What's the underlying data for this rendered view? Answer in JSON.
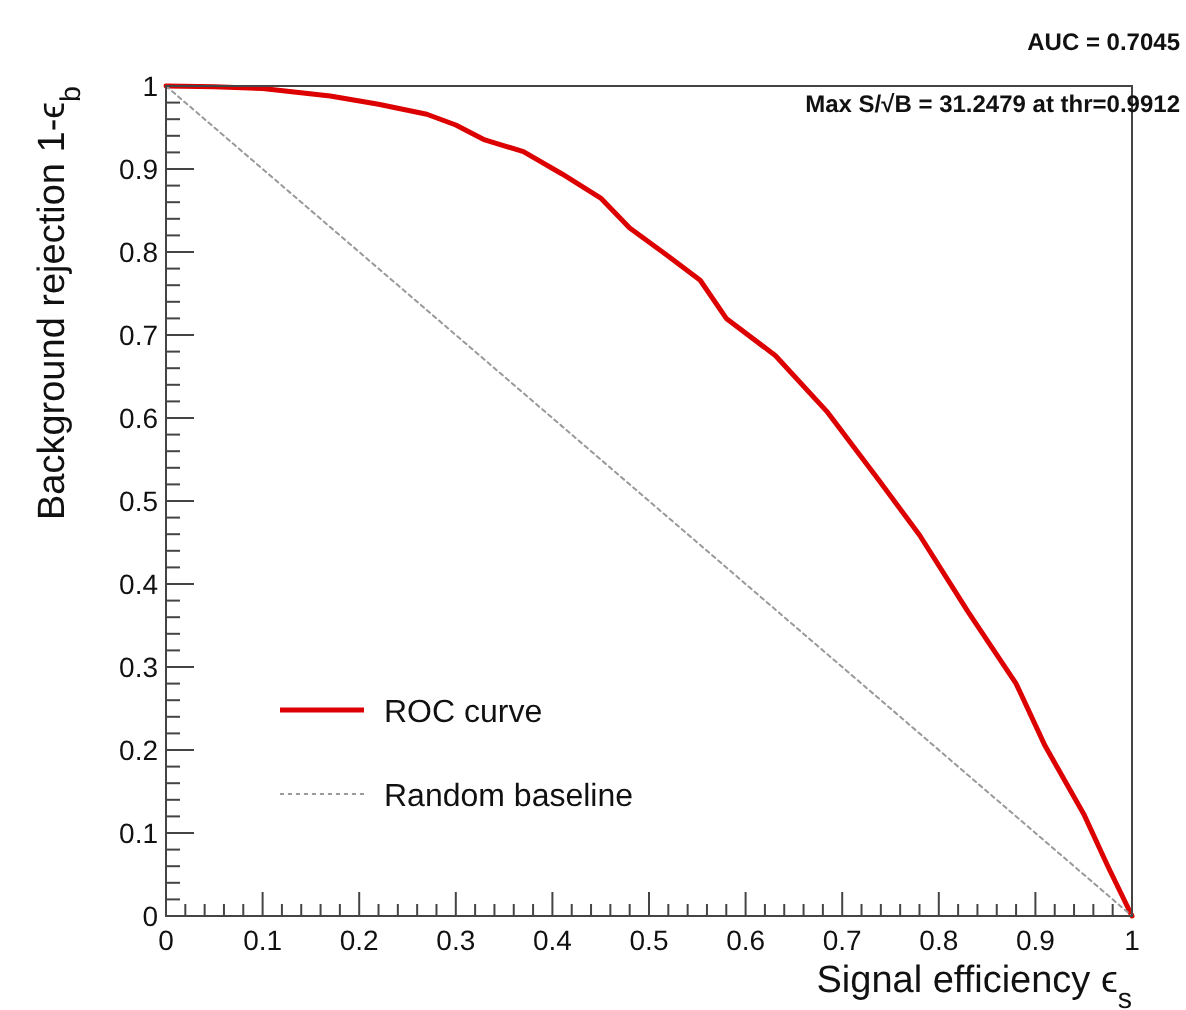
{
  "chart_data": {
    "type": "line",
    "xlabel": "Signal efficiency ϵ$_{s}$",
    "ylabel": "Background rejection 1-ϵ$_{b}$",
    "annotations": [
      "AUC = 0.7045",
      "Max S/√B = 31.2479 at thr=0.9912"
    ],
    "xlim": [
      0,
      1
    ],
    "ylim": [
      0,
      1
    ],
    "xticks": [
      0,
      {
        "value": 0.02,
        "label": null
      },
      {
        "value": 0.04,
        "label": null
      },
      {
        "value": 0.06,
        "label": null
      },
      {
        "value": 0.08,
        "label": null
      },
      0.1,
      {
        "value": 0.12,
        "label": null
      },
      {
        "value": 0.14,
        "label": null
      },
      {
        "value": 0.16,
        "label": null
      },
      {
        "value": 0.18,
        "label": null
      },
      0.2,
      {
        "value": 0.22,
        "label": null
      },
      {
        "value": 0.24,
        "label": null
      },
      {
        "value": 0.26,
        "label": null
      },
      {
        "value": 0.28,
        "label": null
      },
      0.3,
      {
        "value": 0.32,
        "label": null
      },
      {
        "value": 0.34,
        "label": null
      },
      {
        "value": 0.36,
        "label": null
      },
      {
        "value": 0.38,
        "label": null
      },
      0.4,
      {
        "value": 0.42,
        "label": null
      },
      {
        "value": 0.44,
        "label": null
      },
      {
        "value": 0.46,
        "label": null
      },
      {
        "value": 0.48,
        "label": null
      },
      0.5,
      {
        "value": 0.52,
        "label": null
      },
      {
        "value": 0.54,
        "label": null
      },
      {
        "value": 0.56,
        "label": null
      },
      {
        "value": 0.58,
        "label": null
      },
      0.6,
      {
        "value": 0.62,
        "label": null
      },
      {
        "value": 0.64,
        "label": null
      },
      {
        "value": 0.66,
        "label": null
      },
      {
        "value": 0.68,
        "label": null
      },
      0.7,
      {
        "value": 0.72,
        "label": null
      },
      {
        "value": 0.74,
        "label": null
      },
      {
        "value": 0.76,
        "label": null
      },
      {
        "value": 0.78,
        "label": null
      },
      0.8,
      {
        "value": 0.82,
        "label": null
      },
      {
        "value": 0.84,
        "label": null
      },
      {
        "value": 0.86,
        "label": null
      },
      {
        "value": 0.88,
        "label": null
      },
      0.9,
      {
        "value": 0.92,
        "label": null
      },
      {
        "value": 0.94,
        "label": null
      },
      {
        "value": 0.96,
        "label": null
      },
      {
        "value": 0.98,
        "label": null
      },
      1
    ],
    "yticks": [
      0,
      {
        "value": 0.02,
        "label": null
      },
      {
        "value": 0.04,
        "label": null
      },
      {
        "value": 0.06,
        "label": null
      },
      {
        "value": 0.08,
        "label": null
      },
      0.1,
      {
        "value": 0.12,
        "label": null
      },
      {
        "value": 0.14,
        "label": null
      },
      {
        "value": 0.16,
        "label": null
      },
      {
        "value": 0.18,
        "label": null
      },
      0.2,
      {
        "value": 0.22,
        "label": null
      },
      {
        "value": 0.24,
        "label": null
      },
      {
        "value": 0.26,
        "label": null
      },
      {
        "value": 0.28,
        "label": null
      },
      0.3,
      {
        "value": 0.32,
        "label": null
      },
      {
        "value": 0.34,
        "label": null
      },
      {
        "value": 0.36,
        "label": null
      },
      {
        "value": 0.38,
        "label": null
      },
      0.4,
      {
        "value": 0.42,
        "label": null
      },
      {
        "value": 0.44,
        "label": null
      },
      {
        "value": 0.46,
        "label": null
      },
      {
        "value": 0.48,
        "label": null
      },
      0.5,
      {
        "value": 0.52,
        "label": null
      },
      {
        "value": 0.54,
        "label": null
      },
      {
        "value": 0.56,
        "label": null
      },
      {
        "value": 0.58,
        "label": null
      },
      0.6,
      {
        "value": 0.62,
        "label": null
      },
      {
        "value": 0.64,
        "label": null
      },
      {
        "value": 0.66,
        "label": null
      },
      {
        "value": 0.68,
        "label": null
      },
      0.7,
      {
        "value": 0.72,
        "label": null
      },
      {
        "value": 0.74,
        "label": null
      },
      {
        "value": 0.76,
        "label": null
      },
      {
        "value": 0.78,
        "label": null
      },
      0.8,
      {
        "value": 0.82,
        "label": null
      },
      {
        "value": 0.84,
        "label": null
      },
      {
        "value": 0.86,
        "label": null
      },
      {
        "value": 0.88,
        "label": null
      },
      0.9,
      {
        "value": 0.92,
        "label": null
      },
      {
        "value": 0.94,
        "label": null
      },
      {
        "value": 0.96,
        "label": null
      },
      {
        "value": 0.98,
        "label": null
      },
      1
    ],
    "grid": false,
    "legend": "bottom left",
    "series": [
      {
        "name": "ROC curve",
        "color": "#dd0000",
        "line_style": "solid",
        "x": [
          0,
          0.05,
          0.1,
          0.17,
          0.22,
          0.27,
          0.3,
          0.33,
          0.37,
          0.41,
          0.45,
          0.48,
          0.52,
          0.553,
          0.58,
          0.631,
          0.684,
          0.738,
          0.78,
          0.83,
          0.88,
          0.91,
          0.95,
          0.975,
          1
        ],
        "values": [
          1,
          0.999,
          0.997,
          0.988,
          0.978,
          0.966,
          0.953,
          0.935,
          0.921,
          0.894,
          0.865,
          0.829,
          0.795,
          0.766,
          0.72,
          0.675,
          0.608,
          0.525,
          0.459,
          0.367,
          0.28,
          0.205,
          0.123,
          0.06,
          0
        ]
      },
      {
        "name": "Random baseline",
        "color": "#999999",
        "line_style": "dotted",
        "x": [
          0,
          1
        ],
        "values": [
          1,
          0
        ]
      }
    ]
  }
}
